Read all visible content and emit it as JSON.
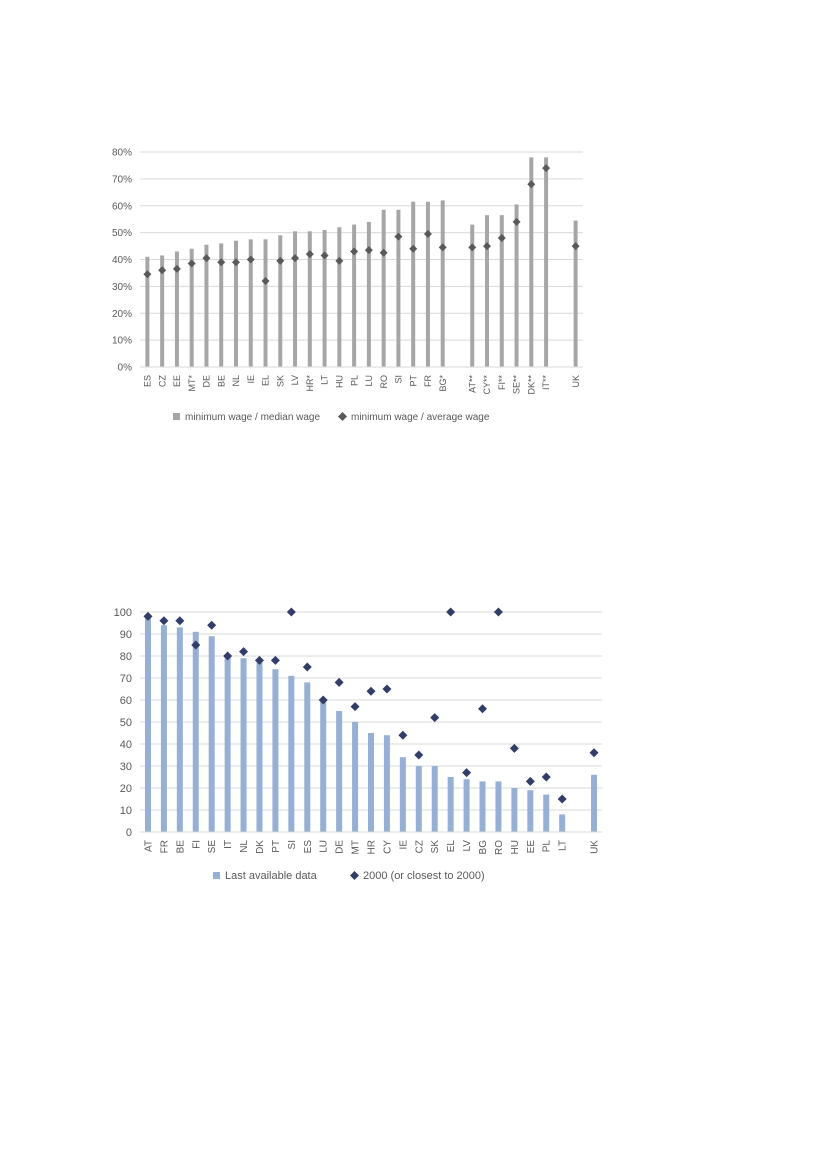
{
  "chart_data": [
    {
      "type": "bar",
      "categories": [
        "ES",
        "CZ",
        "EE",
        "MT*",
        "DE",
        "BE",
        "NL",
        "IE",
        "EL",
        "SK",
        "LV",
        "HR*",
        "LT",
        "HU",
        "PL",
        "LU",
        "RO",
        "SI",
        "PT",
        "FR",
        "BG*",
        "",
        "AT**",
        "CY**",
        "FI**",
        "SE**",
        "DK**",
        "IT**",
        "",
        "UK"
      ],
      "series": [
        {
          "name": "minimum wage / median wage",
          "kind": "bar",
          "values": [
            41,
            41.5,
            43,
            44,
            45.5,
            46,
            47,
            47.5,
            47.5,
            49,
            50.5,
            50.5,
            51,
            52,
            53,
            54,
            58.5,
            58.5,
            61.5,
            61.5,
            62,
            null,
            53,
            56.5,
            56.5,
            60.5,
            78,
            78,
            null,
            54.5
          ]
        },
        {
          "name": "minimum wage / average wage",
          "kind": "diamond",
          "values": [
            34.5,
            36,
            36.5,
            38.5,
            40.5,
            39,
            39,
            40,
            32,
            39.5,
            40.5,
            42,
            41.5,
            39.5,
            43,
            43.5,
            42.5,
            48.5,
            44,
            49.5,
            44.5,
            null,
            44.5,
            45,
            48,
            54,
            68,
            74,
            null,
            45
          ]
        }
      ],
      "yticks": [
        "0%",
        "10%",
        "20%",
        "30%",
        "40%",
        "50%",
        "60%",
        "70%",
        "80%"
      ],
      "ylim": [
        0,
        80
      ],
      "grid": true,
      "legend": "bottom"
    },
    {
      "type": "bar",
      "categories": [
        "AT",
        "FR",
        "BE",
        "FI",
        "SE",
        "IT",
        "NL",
        "DK",
        "PT",
        "SI",
        "ES",
        "LU",
        "DE",
        "MT",
        "HR",
        "CY",
        "IE",
        "CZ",
        "SK",
        "EL",
        "LV",
        "BG",
        "RO",
        "HU",
        "EE",
        "PL",
        "LT",
        "",
        "UK"
      ],
      "series": [
        {
          "name": "Last available data",
          "kind": "bar",
          "values": [
            98,
            94,
            93,
            91,
            89,
            80,
            79,
            77,
            74,
            71,
            68,
            60,
            55,
            50,
            45,
            44,
            34,
            30,
            30,
            25,
            24,
            23,
            23,
            20,
            19,
            17,
            8,
            null,
            26
          ]
        },
        {
          "name": "2000 (or closest to 2000)",
          "kind": "diamond",
          "values": [
            98,
            96,
            96,
            85,
            94,
            80,
            82,
            78,
            78,
            100,
            75,
            60,
            68,
            57,
            64,
            65,
            44,
            35,
            52,
            100,
            27,
            56,
            100,
            38,
            23,
            25,
            15,
            null,
            36
          ]
        }
      ],
      "yticks": [
        "0",
        "10",
        "20",
        "30",
        "40",
        "50",
        "60",
        "70",
        "80",
        "90",
        "100"
      ],
      "ylim": [
        0,
        100
      ],
      "grid": true,
      "legend": "bottom"
    }
  ],
  "colors": {
    "chart1_bar": "#a6a6a6",
    "chart1_marker": "#595959",
    "chart2_bar": "#95b0d6",
    "chart2_marker": "#323d6b",
    "grid": "#d9d9d9",
    "text": "#595959"
  }
}
